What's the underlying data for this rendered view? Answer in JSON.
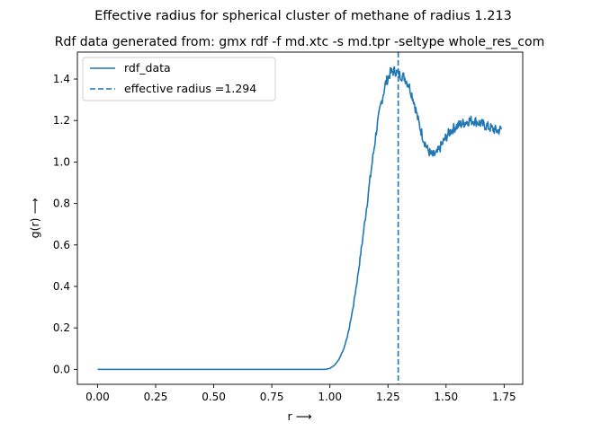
{
  "chart_data": {
    "type": "line",
    "suptitle": "Effective radius for spherical cluster of methane of radius 1.213",
    "title": "Rdf data generated from: gmx rdf -f md.xtc -s md.tpr -seltype whole_res_com",
    "xlabel": "r ⟶",
    "ylabel": "g(r) ⟶",
    "xlim": [
      -0.087,
      1.83
    ],
    "ylim": [
      -0.072,
      1.53
    ],
    "xticks": [
      0.0,
      0.25,
      0.5,
      0.75,
      1.0,
      1.25,
      1.5,
      1.75
    ],
    "xtick_labels": [
      "0.00",
      "0.25",
      "0.50",
      "0.75",
      "1.00",
      "1.25",
      "1.50",
      "1.75"
    ],
    "yticks": [
      0.0,
      0.2,
      0.4,
      0.6,
      0.8,
      1.0,
      1.2,
      1.4
    ],
    "ytick_labels": [
      "0.0",
      "0.2",
      "0.4",
      "0.6",
      "0.8",
      "1.0",
      "1.2",
      "1.4"
    ],
    "grid": false,
    "legend_position": "upper-left",
    "series": [
      {
        "name": "rdf_data",
        "style": "solid",
        "color": "#1f77b4",
        "x": [
          0.0,
          0.05,
          0.1,
          0.15,
          0.2,
          0.25,
          0.3,
          0.35,
          0.4,
          0.45,
          0.5,
          0.55,
          0.6,
          0.65,
          0.7,
          0.75,
          0.8,
          0.85,
          0.9,
          0.95,
          0.98,
          1.0,
          1.02,
          1.04,
          1.06,
          1.08,
          1.1,
          1.12,
          1.14,
          1.16,
          1.18,
          1.2,
          1.22,
          1.24,
          1.26,
          1.28,
          1.3,
          1.32,
          1.34,
          1.36,
          1.38,
          1.4,
          1.42,
          1.44,
          1.46,
          1.48,
          1.5,
          1.52,
          1.54,
          1.56,
          1.58,
          1.6,
          1.62,
          1.64,
          1.66,
          1.68,
          1.7,
          1.72,
          1.74
        ],
        "values": [
          0.0,
          0.0,
          0.0,
          0.0,
          0.0,
          0.0,
          0.0,
          0.0,
          0.0,
          0.0,
          0.0,
          0.0,
          0.0,
          0.0,
          0.0,
          0.0,
          0.0,
          0.0,
          0.0,
          0.0,
          0.0,
          0.005,
          0.02,
          0.05,
          0.1,
          0.18,
          0.3,
          0.45,
          0.62,
          0.8,
          0.98,
          1.15,
          1.28,
          1.38,
          1.43,
          1.44,
          1.42,
          1.41,
          1.37,
          1.3,
          1.2,
          1.12,
          1.06,
          1.03,
          1.04,
          1.08,
          1.12,
          1.15,
          1.17,
          1.18,
          1.19,
          1.2,
          1.2,
          1.19,
          1.18,
          1.17,
          1.16,
          1.15,
          1.16
        ]
      },
      {
        "name": "effective radius =1.294",
        "style": "dashed",
        "color": "#1f77b4",
        "vline_x": 1.294
      }
    ]
  }
}
